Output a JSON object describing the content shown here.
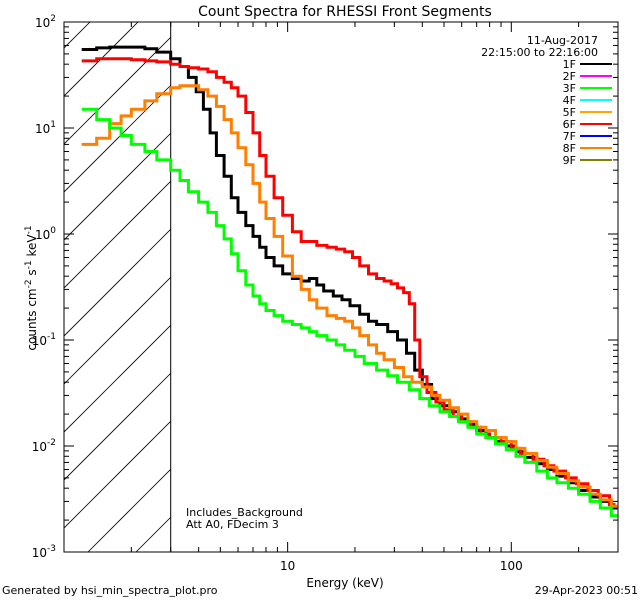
{
  "chart_data": {
    "type": "line",
    "title": "Count Spectra for RHESSI Front Segments",
    "xlabel": "Energy (keV)",
    "ylabel_parts": {
      "main": "counts cm",
      "e1": "-2",
      "s": " s",
      "e2": "-1",
      "unit": " keV",
      "e3": "-1"
    },
    "xscale": "log",
    "yscale": "log",
    "xlim": [
      1,
      300
    ],
    "ylim": [
      0.001,
      100
    ],
    "x_ticks": [
      {
        "v": 10,
        "label": "10"
      },
      {
        "v": 100,
        "label": "100"
      }
    ],
    "y_ticks": [
      {
        "v": 0.001,
        "base": "10",
        "exp": "-3"
      },
      {
        "v": 0.01,
        "base": "10",
        "exp": "-2"
      },
      {
        "v": 0.1,
        "base": "10",
        "exp": "-1"
      },
      {
        "v": 1,
        "base": "10",
        "exp": "0"
      },
      {
        "v": 10,
        "base": "10",
        "exp": "1"
      },
      {
        "v": 100,
        "base": "10",
        "exp": "2"
      }
    ],
    "shaded_region_xmax": 3,
    "date": "11-Aug-2017",
    "time_range": "22:15:00 to 22:16:00",
    "annotations": [
      "Includes_Background",
      "Att A0, FDecim 3"
    ],
    "legend": [
      {
        "label": "1F",
        "color": "#000000"
      },
      {
        "label": "2F",
        "color": "#ff00ff"
      },
      {
        "label": "3F",
        "color": "#00ff00"
      },
      {
        "label": "4F",
        "color": "#00ffff"
      },
      {
        "label": "5F",
        "color": "#ffa500"
      },
      {
        "label": "6F",
        "color": "#ff0000"
      },
      {
        "label": "7F",
        "color": "#0000ff"
      },
      {
        "label": "8F",
        "color": "#ff7f00"
      },
      {
        "label": "9F",
        "color": "#808000"
      }
    ],
    "series": [
      {
        "name": "1F",
        "color": "#000000",
        "points": [
          [
            1.2,
            55
          ],
          [
            1.4,
            57
          ],
          [
            1.6,
            58
          ],
          [
            1.8,
            58
          ],
          [
            2.0,
            58
          ],
          [
            2.3,
            56
          ],
          [
            2.6,
            52
          ],
          [
            3.0,
            45
          ],
          [
            3.3,
            38
          ],
          [
            3.6,
            30
          ],
          [
            3.9,
            22
          ],
          [
            4.2,
            15
          ],
          [
            4.5,
            9
          ],
          [
            4.8,
            5.5
          ],
          [
            5.2,
            3.5
          ],
          [
            5.6,
            2.2
          ],
          [
            6.0,
            1.6
          ],
          [
            6.5,
            1.2
          ],
          [
            7.0,
            0.95
          ],
          [
            7.5,
            0.75
          ],
          [
            8.0,
            0.6
          ],
          [
            8.7,
            0.5
          ],
          [
            9.5,
            0.42
          ],
          [
            10.5,
            0.38
          ],
          [
            11.5,
            0.36
          ],
          [
            12.5,
            0.38
          ],
          [
            13.5,
            0.33
          ],
          [
            14.5,
            0.29
          ],
          [
            16,
            0.26
          ],
          [
            17.5,
            0.24
          ],
          [
            19,
            0.21
          ],
          [
            21,
            0.175
          ],
          [
            23,
            0.15
          ],
          [
            25,
            0.14
          ],
          [
            28,
            0.12
          ],
          [
            31,
            0.1
          ],
          [
            34,
            0.075
          ],
          [
            37,
            0.052
          ],
          [
            40,
            0.038
          ],
          [
            44,
            0.028
          ],
          [
            48,
            0.024
          ],
          [
            53,
            0.021
          ],
          [
            58,
            0.018
          ],
          [
            64,
            0.016
          ],
          [
            70,
            0.014
          ],
          [
            77,
            0.012
          ],
          [
            85,
            0.011
          ],
          [
            95,
            0.01
          ],
          [
            105,
            0.0088
          ],
          [
            115,
            0.0078
          ],
          [
            130,
            0.0068
          ],
          [
            145,
            0.006
          ],
          [
            160,
            0.0052
          ],
          [
            180,
            0.0045
          ],
          [
            200,
            0.0038
          ],
          [
            225,
            0.0033
          ],
          [
            250,
            0.003
          ],
          [
            280,
            0.0026
          ]
        ]
      },
      {
        "name": "6F",
        "color": "#ff0000",
        "points": [
          [
            1.2,
            43
          ],
          [
            1.4,
            45
          ],
          [
            1.6,
            45
          ],
          [
            1.8,
            45
          ],
          [
            2.0,
            44
          ],
          [
            2.3,
            43
          ],
          [
            2.6,
            42
          ],
          [
            3.0,
            40
          ],
          [
            3.3,
            38
          ],
          [
            3.6,
            37
          ],
          [
            4.0,
            36
          ],
          [
            4.4,
            34
          ],
          [
            4.8,
            30
          ],
          [
            5.2,
            27
          ],
          [
            5.6,
            24
          ],
          [
            6.0,
            20
          ],
          [
            6.5,
            14
          ],
          [
            7.0,
            9
          ],
          [
            7.5,
            5.5
          ],
          [
            8.0,
            3.5
          ],
          [
            8.7,
            2.2
          ],
          [
            9.5,
            1.5
          ],
          [
            10.5,
            1.05
          ],
          [
            11.5,
            0.85
          ],
          [
            12.5,
            0.85
          ],
          [
            13.5,
            0.78
          ],
          [
            15,
            0.75
          ],
          [
            16.5,
            0.72
          ],
          [
            18,
            0.68
          ],
          [
            19.5,
            0.6
          ],
          [
            21,
            0.5
          ],
          [
            23,
            0.42
          ],
          [
            25,
            0.38
          ],
          [
            27,
            0.36
          ],
          [
            29,
            0.34
          ],
          [
            31,
            0.31
          ],
          [
            33,
            0.28
          ],
          [
            35,
            0.22
          ],
          [
            37,
            0.1
          ],
          [
            39,
            0.045
          ],
          [
            42,
            0.032
          ],
          [
            46,
            0.026
          ],
          [
            50,
            0.022
          ],
          [
            55,
            0.019
          ],
          [
            60,
            0.017
          ],
          [
            66,
            0.015
          ],
          [
            73,
            0.013
          ],
          [
            80,
            0.012
          ],
          [
            90,
            0.011
          ],
          [
            100,
            0.0095
          ],
          [
            110,
            0.0085
          ],
          [
            125,
            0.0075
          ],
          [
            140,
            0.0065
          ],
          [
            155,
            0.0058
          ],
          [
            175,
            0.005
          ],
          [
            195,
            0.0044
          ],
          [
            220,
            0.0038
          ],
          [
            245,
            0.0034
          ],
          [
            275,
            0.0028
          ]
        ]
      },
      {
        "name": "8F",
        "color": "#ff7f00",
        "points": [
          [
            1.2,
            7
          ],
          [
            1.4,
            8
          ],
          [
            1.6,
            11
          ],
          [
            1.8,
            13
          ],
          [
            2.0,
            15
          ],
          [
            2.3,
            18
          ],
          [
            2.6,
            21
          ],
          [
            3.0,
            24
          ],
          [
            3.3,
            25
          ],
          [
            3.6,
            25
          ],
          [
            4.0,
            23
          ],
          [
            4.4,
            20
          ],
          [
            4.8,
            16
          ],
          [
            5.2,
            12
          ],
          [
            5.6,
            9
          ],
          [
            6.0,
            6.5
          ],
          [
            6.5,
            4.5
          ],
          [
            7.0,
            3
          ],
          [
            7.5,
            2
          ],
          [
            8.0,
            1.4
          ],
          [
            8.7,
            0.95
          ],
          [
            9.5,
            0.62
          ],
          [
            10.5,
            0.4
          ],
          [
            11.5,
            0.3
          ],
          [
            12.5,
            0.24
          ],
          [
            13.5,
            0.2
          ],
          [
            15,
            0.17
          ],
          [
            16.5,
            0.16
          ],
          [
            18,
            0.15
          ],
          [
            19.5,
            0.13
          ],
          [
            21,
            0.11
          ],
          [
            23,
            0.09
          ],
          [
            25,
            0.075
          ],
          [
            27,
            0.065
          ],
          [
            30,
            0.055
          ],
          [
            33,
            0.045
          ],
          [
            36,
            0.04
          ],
          [
            40,
            0.036
          ],
          [
            44,
            0.03
          ],
          [
            48,
            0.027
          ],
          [
            53,
            0.023
          ],
          [
            58,
            0.02
          ],
          [
            64,
            0.017
          ],
          [
            70,
            0.015
          ],
          [
            77,
            0.014
          ],
          [
            85,
            0.012
          ],
          [
            95,
            0.011
          ],
          [
            105,
            0.0095
          ],
          [
            115,
            0.0085
          ],
          [
            130,
            0.0073
          ],
          [
            145,
            0.0063
          ],
          [
            160,
            0.0055
          ],
          [
            180,
            0.0047
          ],
          [
            200,
            0.0041
          ],
          [
            225,
            0.0035
          ],
          [
            250,
            0.0031
          ],
          [
            280,
            0.0027
          ]
        ]
      },
      {
        "name": "3F",
        "color": "#00ff00",
        "points": [
          [
            1.2,
            15
          ],
          [
            1.4,
            12
          ],
          [
            1.6,
            10
          ],
          [
            1.8,
            8.5
          ],
          [
            2.0,
            7
          ],
          [
            2.3,
            6
          ],
          [
            2.6,
            5
          ],
          [
            3.0,
            4
          ],
          [
            3.3,
            3.2
          ],
          [
            3.6,
            2.5
          ],
          [
            4.0,
            2
          ],
          [
            4.4,
            1.6
          ],
          [
            4.8,
            1.2
          ],
          [
            5.2,
            0.9
          ],
          [
            5.6,
            0.65
          ],
          [
            6.0,
            0.45
          ],
          [
            6.5,
            0.33
          ],
          [
            7.0,
            0.26
          ],
          [
            7.5,
            0.22
          ],
          [
            8.0,
            0.19
          ],
          [
            8.7,
            0.17
          ],
          [
            9.5,
            0.15
          ],
          [
            10.5,
            0.14
          ],
          [
            11.5,
            0.13
          ],
          [
            12.5,
            0.12
          ],
          [
            13.5,
            0.11
          ],
          [
            15,
            0.1
          ],
          [
            16.5,
            0.09
          ],
          [
            18,
            0.08
          ],
          [
            20,
            0.07
          ],
          [
            22,
            0.06
          ],
          [
            25,
            0.052
          ],
          [
            28,
            0.046
          ],
          [
            31,
            0.04
          ],
          [
            35,
            0.034
          ],
          [
            39,
            0.028
          ],
          [
            43,
            0.024
          ],
          [
            48,
            0.021
          ],
          [
            53,
            0.019
          ],
          [
            58,
            0.017
          ],
          [
            64,
            0.015
          ],
          [
            70,
            0.013
          ],
          [
            77,
            0.012
          ],
          [
            85,
            0.0105
          ],
          [
            95,
            0.0092
          ],
          [
            105,
            0.008
          ],
          [
            115,
            0.007
          ],
          [
            130,
            0.0058
          ],
          [
            145,
            0.005
          ],
          [
            160,
            0.0045
          ],
          [
            180,
            0.004
          ],
          [
            200,
            0.0035
          ],
          [
            225,
            0.003
          ],
          [
            250,
            0.0026
          ],
          [
            280,
            0.0022
          ]
        ]
      }
    ]
  },
  "footer": {
    "left": "Generated by hsi_min_spectra_plot.pro",
    "right": "29-Apr-2023 00:51"
  }
}
